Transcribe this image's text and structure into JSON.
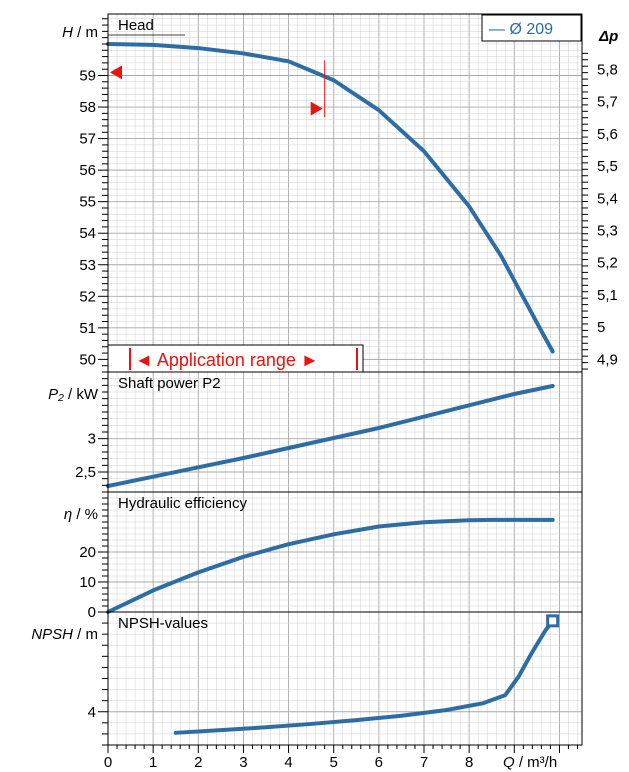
{
  "colors": {
    "curve": "#2e6da4",
    "grid": "#cfcfcf",
    "grid_major": "#a8a8a8",
    "frame": "#000000",
    "range_marker": "#e8140f"
  },
  "x_axis": {
    "label_var": "Q",
    "label_unit": " / m³/h",
    "ticks": [
      0,
      1,
      2,
      3,
      4,
      5,
      6,
      7,
      8
    ],
    "tick_labels": [
      "0",
      "1",
      "2",
      "3",
      "4",
      "5",
      "6",
      "7",
      "8"
    ],
    "range": [
      0,
      10.5
    ]
  },
  "legend": {
    "label": "— Ø 209"
  },
  "application_range": {
    "label": "◄ Application range ►"
  },
  "chart_data": [
    {
      "type": "line",
      "title": "Head",
      "ylabel_var": "H",
      "ylabel_unit": " / m",
      "ylim": [
        49.6,
        60.95
      ],
      "yticks": [
        50,
        51,
        52,
        53,
        54,
        55,
        56,
        57,
        58,
        59
      ],
      "ytick_labels": [
        "50",
        "51",
        "52",
        "53",
        "54",
        "55",
        "56",
        "57",
        "58",
        "59"
      ],
      "right_axis": {
        "label": "Δp",
        "ticks": [
          4.9,
          5.0,
          5.1,
          5.2,
          5.3,
          5.4,
          5.5,
          5.6,
          5.7,
          5.8
        ],
        "tick_labels": [
          "4,9",
          "5",
          "5,1",
          "5,2",
          "5,3",
          "5,4",
          "5,5",
          "5,6",
          "5,7",
          "5,8"
        ],
        "data_per_left_unit": 0.0979,
        "offset": 0.005
      },
      "series": [
        {
          "name": "Ø 209",
          "x": [
            0,
            1,
            2,
            3,
            4,
            5,
            6,
            7,
            8,
            8.7,
            9.3,
            9.6,
            9.85
          ],
          "y": [
            60.0,
            59.97,
            59.87,
            59.7,
            59.45,
            58.85,
            57.9,
            56.6,
            54.85,
            53.3,
            51.7,
            50.9,
            50.25
          ]
        }
      ],
      "markers": {
        "x": 4.8,
        "y": 59.1,
        "left_y": 59.1
      }
    },
    {
      "type": "line",
      "title": "Shaft power P2",
      "ylabel_var": "P₂",
      "ylabel_unit": " / kW",
      "ylim": [
        2.2,
        4.0
      ],
      "yticks": [
        2.5,
        3
      ],
      "ytick_labels": [
        "2,5",
        "3"
      ],
      "series": [
        {
          "name": "P2",
          "x": [
            0,
            1,
            2,
            3,
            4,
            5,
            6,
            7,
            8,
            9,
            9.85
          ],
          "y": [
            2.29,
            2.43,
            2.57,
            2.71,
            2.86,
            3.01,
            3.16,
            3.33,
            3.5,
            3.67,
            3.79
          ]
        }
      ]
    },
    {
      "type": "line",
      "title": "Hydraulic efficiency",
      "ylabel_var": "η",
      "ylabel_unit": " / %",
      "ylim": [
        0,
        40
      ],
      "yticks": [
        0,
        10,
        20
      ],
      "ytick_labels": [
        "0",
        "10",
        "20"
      ],
      "series": [
        {
          "name": "η",
          "x": [
            0,
            1,
            2,
            3,
            4,
            5,
            6,
            7,
            8,
            8.5,
            9,
            9.85
          ],
          "y": [
            0,
            7.2,
            13.2,
            18.4,
            22.6,
            25.9,
            28.5,
            29.9,
            30.6,
            30.7,
            30.7,
            30.7
          ]
        }
      ]
    },
    {
      "type": "line",
      "title": "NPSH-values",
      "ylabel_var": "NPSH",
      "ylabel_unit": " / m",
      "ylim": [
        2.5,
        8.5
      ],
      "yticks": [
        4
      ],
      "ytick_labels": [
        "4"
      ],
      "series": [
        {
          "name": "NPSH",
          "x": [
            1.5,
            2.5,
            3.5,
            4.5,
            5.5,
            6.5,
            7.5,
            8.3,
            8.8,
            9.1,
            9.4,
            9.7,
            9.85
          ],
          "y": [
            3.05,
            3.17,
            3.3,
            3.45,
            3.62,
            3.82,
            4.08,
            4.38,
            4.75,
            5.6,
            6.7,
            7.7,
            8.1
          ]
        }
      ],
      "end_marker": {
        "x": 9.85,
        "y": 8.1
      }
    }
  ]
}
